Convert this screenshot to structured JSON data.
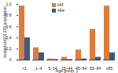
{
  "chart_data": {
    "type": "bar",
    "categories": [
      "<1",
      "1–4",
      "5–14",
      "15–44",
      "45–64",
      "65–84",
      "≥85"
    ],
    "series": [
      {
        "name": "Hif",
        "color": "#e07b39",
        "values": [
          0.97,
          0.22,
          0.02,
          0.05,
          0.18,
          0.55,
          0.97
        ]
      },
      {
        "name": "Hie",
        "color": "#3b5b8c",
        "values": [
          0.4,
          0.13,
          0.01,
          0.01,
          0.02,
          0.05,
          0.13
        ]
      }
    ],
    "x_label": "Age group, y",
    "y_label": "Incidence/100,000 population",
    "ylim": [
      0,
      1
    ],
    "yticks": [
      0,
      0.2,
      0.4,
      0.6,
      0.8,
      {
        "value": 1,
        "label": "1.0"
      }
    ],
    "legend": "top",
    "grid": false
  }
}
